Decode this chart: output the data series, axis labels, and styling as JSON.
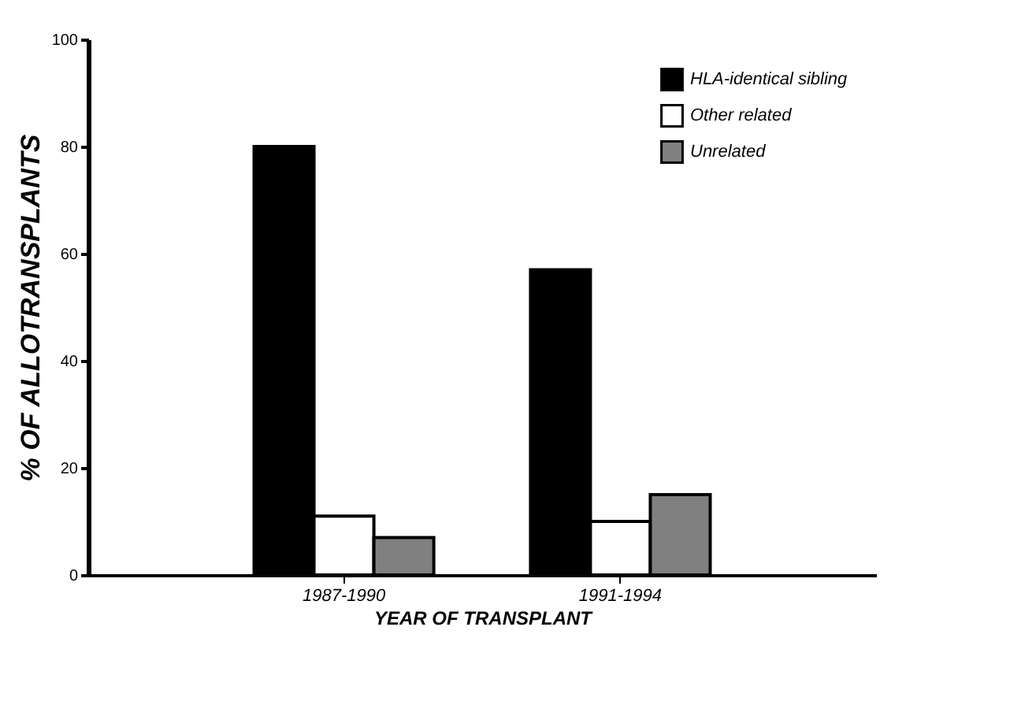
{
  "chart_data": {
    "type": "bar",
    "xlabel": "YEAR OF TRANSPLANT",
    "ylabel": "% OF ALLOTRANSPLANTS",
    "categories": [
      "1987-1990",
      "1991-1994"
    ],
    "series": [
      {
        "name": "HLA-identical sibling",
        "color": "#000000",
        "values": [
          80,
          57
        ]
      },
      {
        "name": "Other related",
        "color": "#ffffff",
        "values": [
          11,
          10
        ]
      },
      {
        "name": "Unrelated",
        "color": "#808080",
        "values": [
          7,
          15
        ]
      }
    ],
    "ylim": [
      0,
      100
    ],
    "yticks": [
      0,
      20,
      40,
      60,
      80,
      100
    ],
    "grid": false,
    "legend": "top right"
  }
}
